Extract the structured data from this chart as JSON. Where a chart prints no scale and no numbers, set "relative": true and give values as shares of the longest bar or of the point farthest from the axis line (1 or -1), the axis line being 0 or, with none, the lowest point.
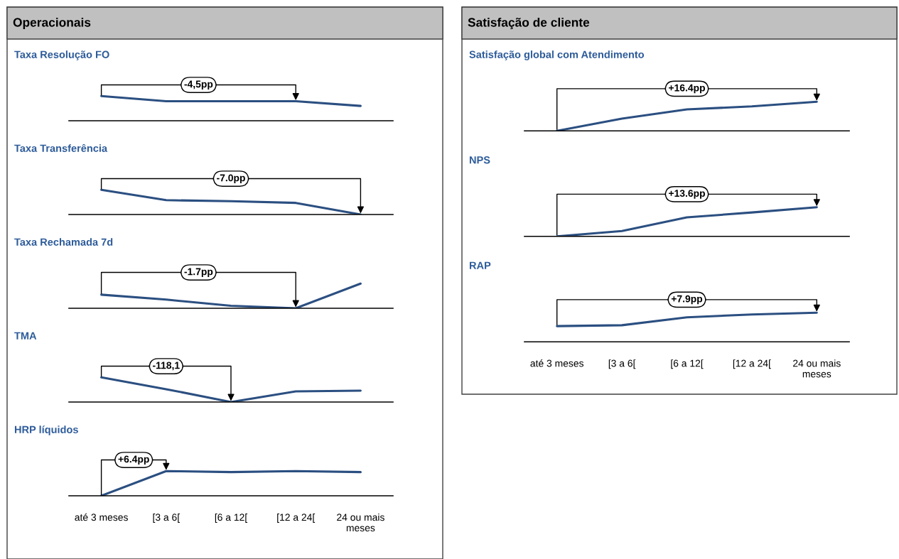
{
  "chart_data": [
    {
      "type": "other",
      "title": "Operacionais"
    },
    {
      "type": "line",
      "title": "Taxa Resolução FO",
      "relative": true,
      "tick_labels": false,
      "categories": [
        "até 3 meses",
        "[3 a 6[",
        "[6 a 12[",
        "[12 a 24[",
        "24 ou mais\nmeses"
      ],
      "series": [
        {
          "color": "#2b4f81",
          "values": [
            1,
            0.79,
            0.79,
            0.79,
            0.6
          ]
        }
      ],
      "annotations": [
        {
          "text": "-4,5pp",
          "x": "[12 a 24[",
          "y": 0.79
        }
      ]
    },
    {
      "type": "line",
      "title": "Taxa Transferência",
      "relative": true,
      "tick_labels": false,
      "categories": [
        "até 3 meses",
        "[3 a 6[",
        "[6 a 12[",
        "[12 a 24[",
        "24 ou mais\nmeses"
      ],
      "series": [
        {
          "color": "#2b4f81",
          "values": [
            1,
            0.58,
            0.54,
            0.47,
            0
          ]
        }
      ],
      "annotations": [
        {
          "text": "-7.0pp",
          "x": "24 ou mais\nmeses",
          "y": 0
        }
      ]
    },
    {
      "type": "line",
      "title": "Taxa Rechamada 7d",
      "relative": true,
      "tick_labels": false,
      "categories": [
        "até 3 meses",
        "[3 a 6[",
        "[6 a 12[",
        "[12 a 24[",
        "24 ou mais\nmeses"
      ],
      "series": [
        {
          "color": "#2b4f81",
          "values": [
            0.55,
            0.35,
            0.1,
            0,
            1
          ]
        }
      ],
      "annotations": [
        {
          "text": "-1.7pp",
          "x": "[12 a 24[",
          "y": 0
        }
      ]
    },
    {
      "type": "line",
      "title": "TMA",
      "relative": true,
      "tick_labels": false,
      "categories": [
        "até 3 meses",
        "[3 a 6[",
        "[6 a 12[",
        "[12 a 24[",
        "24 ou mais\nmeses"
      ],
      "series": [
        {
          "color": "#2b4f81",
          "values": [
            1,
            0.52,
            0,
            0.43,
            0.46
          ]
        }
      ],
      "annotations": [
        {
          "text": "-118,1",
          "x": "[6 a 12[",
          "y": 0
        }
      ]
    },
    {
      "type": "line",
      "title": "HRP líquidos",
      "relative": true,
      "categories": [
        "até 3 meses",
        "[3 a 6[",
        "[6 a 12[",
        "[12 a 24[",
        "24 ou mais\nmeses"
      ],
      "series": [
        {
          "color": "#2b4f81",
          "values": [
            0,
            1,
            0.96,
            1,
            0.96
          ]
        }
      ],
      "annotations": [
        {
          "text": "+6.4pp",
          "x": "[3 a 6[",
          "y": 1
        }
      ]
    },
    {
      "type": "other",
      "title": "Satisfação de cliente"
    },
    {
      "type": "line",
      "title": "Satisfação global com Atendimento",
      "relative": true,
      "tick_labels": false,
      "categories": [
        "até 3 meses",
        "[3 a 6[",
        "[6 a 12[",
        "[12 a 24[",
        "24 ou mais\nmeses"
      ],
      "series": [
        {
          "color": "#2b4f81",
          "values": [
            0,
            0.42,
            0.74,
            0.84,
            1
          ]
        }
      ],
      "annotations": [
        {
          "text": "+16.4pp",
          "x": "24 ou mais\nmeses",
          "y": 1
        }
      ]
    },
    {
      "type": "line",
      "title": "NPS",
      "relative": true,
      "tick_labels": false,
      "categories": [
        "até 3 meses",
        "[3 a 6[",
        "[6 a 12[",
        "[12 a 24[",
        "24 ou mais\nmeses"
      ],
      "series": [
        {
          "color": "#2b4f81",
          "values": [
            0,
            0.18,
            0.65,
            0.82,
            1
          ]
        }
      ],
      "annotations": [
        {
          "text": "+13.6pp",
          "x": "24 ou mais\nmeses",
          "y": 1
        }
      ]
    },
    {
      "type": "line",
      "title": "RAP",
      "relative": true,
      "categories": [
        "até 3 meses",
        "[3 a 6[",
        "[6 a 12[",
        "[12 a 24[",
        "24 ou mais\nmeses"
      ],
      "series": [
        {
          "color": "#2b4f81",
          "values": [
            0.54,
            0.57,
            0.84,
            0.94,
            1
          ]
        }
      ],
      "annotations": [
        {
          "text": "+7.9pp",
          "x": "24 ou mais\nmeses",
          "y": 1
        }
      ]
    }
  ]
}
